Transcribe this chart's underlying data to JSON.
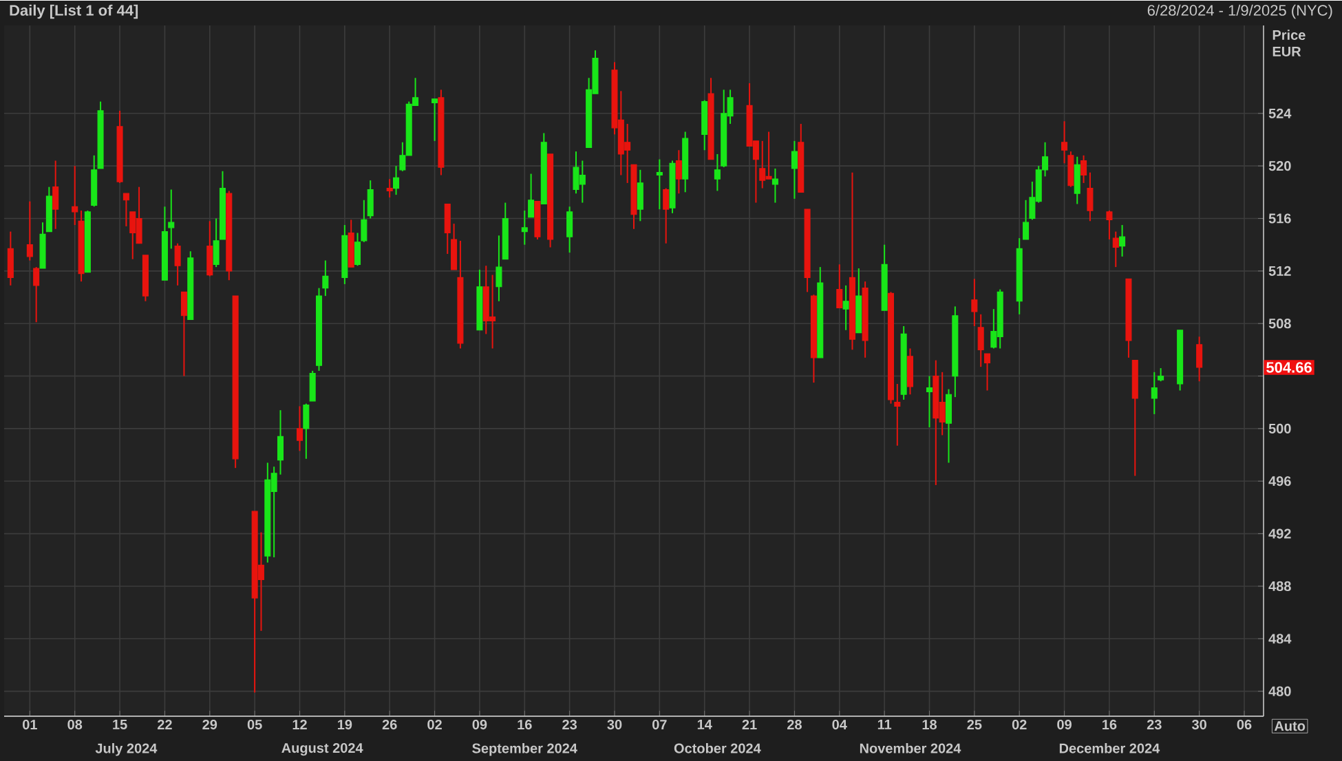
{
  "chart_data": {
    "type": "candlestick",
    "title": "Daily [List 1 of 44]",
    "subtitle": "6/28/2024 - 1/9/2025 (NYC)",
    "ylabel": "Price EUR",
    "x": [
      "2024-06-28",
      "2024-07-01",
      "2024-07-02",
      "2024-07-03",
      "2024-07-04",
      "2024-07-05",
      "2024-07-08",
      "2024-07-09",
      "2024-07-10",
      "2024-07-11",
      "2024-07-12",
      "2024-07-15",
      "2024-07-16",
      "2024-07-17",
      "2024-07-18",
      "2024-07-19",
      "2024-07-22",
      "2024-07-23",
      "2024-07-24",
      "2024-07-25",
      "2024-07-26",
      "2024-07-29",
      "2024-07-30",
      "2024-07-31",
      "2024-08-01",
      "2024-08-02",
      "2024-08-05",
      "2024-08-06",
      "2024-08-07",
      "2024-08-08",
      "2024-08-09",
      "2024-08-12",
      "2024-08-13",
      "2024-08-14",
      "2024-08-15",
      "2024-08-16",
      "2024-08-19",
      "2024-08-20",
      "2024-08-21",
      "2024-08-22",
      "2024-08-23",
      "2024-08-26",
      "2024-08-27",
      "2024-08-28",
      "2024-08-29",
      "2024-08-30",
      "2024-09-02",
      "2024-09-03",
      "2024-09-04",
      "2024-09-05",
      "2024-09-06",
      "2024-09-09",
      "2024-09-10",
      "2024-09-11",
      "2024-09-12",
      "2024-09-13",
      "2024-09-16",
      "2024-09-17",
      "2024-09-18",
      "2024-09-19",
      "2024-09-20",
      "2024-09-23",
      "2024-09-24",
      "2024-09-25",
      "2024-09-26",
      "2024-09-27",
      "2024-09-30",
      "2024-10-01",
      "2024-10-02",
      "2024-10-03",
      "2024-10-04",
      "2024-10-07",
      "2024-10-08",
      "2024-10-09",
      "2024-10-10",
      "2024-10-11",
      "2024-10-14",
      "2024-10-15",
      "2024-10-16",
      "2024-10-17",
      "2024-10-18",
      "2024-10-21",
      "2024-10-22",
      "2024-10-23",
      "2024-10-24",
      "2024-10-25",
      "2024-10-28",
      "2024-10-29",
      "2024-10-30",
      "2024-10-31",
      "2024-11-01",
      "2024-11-04",
      "2024-11-05",
      "2024-11-06",
      "2024-11-07",
      "2024-11-08",
      "2024-11-11",
      "2024-11-12",
      "2024-11-13",
      "2024-11-14",
      "2024-11-15",
      "2024-11-18",
      "2024-11-19",
      "2024-11-20",
      "2024-11-21",
      "2024-11-22",
      "2024-11-25",
      "2024-11-26",
      "2024-11-27",
      "2024-11-28",
      "2024-11-29",
      "2024-12-02",
      "2024-12-03",
      "2024-12-04",
      "2024-12-05",
      "2024-12-06",
      "2024-12-09",
      "2024-12-10",
      "2024-12-11",
      "2024-12-12",
      "2024-12-13",
      "2024-12-16",
      "2024-12-17",
      "2024-12-18",
      "2024-12-19",
      "2024-12-20",
      "2024-12-23",
      "2024-12-24",
      "2024-12-27",
      "2024-12-30"
    ],
    "ohlc": [
      [
        513.7,
        515.0,
        510.9,
        511.5
      ],
      [
        514.0,
        517.3,
        512.8,
        513.1
      ],
      [
        512.2,
        512.3,
        508.1,
        510.9
      ],
      [
        512.2,
        515.7,
        512.2,
        514.8
      ],
      [
        515.0,
        518.4,
        515.0,
        517.7
      ],
      [
        518.4,
        520.4,
        515.2,
        516.7
      ],
      [
        516.9,
        520.0,
        515.5,
        516.5
      ],
      [
        515.8,
        516.6,
        511.2,
        511.8
      ],
      [
        511.9,
        516.6,
        511.9,
        516.5
      ],
      [
        517.0,
        520.8,
        516.9,
        519.7
      ],
      [
        519.8,
        524.9,
        519.8,
        524.2
      ],
      [
        523.0,
        524.2,
        518.7,
        518.8
      ],
      [
        517.9,
        517.9,
        515.4,
        517.4
      ],
      [
        516.5,
        516.5,
        512.9,
        514.9
      ],
      [
        516.0,
        518.4,
        514.1,
        514.1
      ],
      [
        513.2,
        513.2,
        509.7,
        510.1
      ],
      [
        511.3,
        516.9,
        511.3,
        515.0
      ],
      [
        515.3,
        518.2,
        513.7,
        515.7
      ],
      [
        513.9,
        514.1,
        510.9,
        512.4
      ],
      [
        510.4,
        510.4,
        504.0,
        508.6
      ],
      [
        508.3,
        513.5,
        508.3,
        513.0
      ],
      [
        513.9,
        515.8,
        511.6,
        511.7
      ],
      [
        512.5,
        516.0,
        512.3,
        514.3
      ],
      [
        514.4,
        519.6,
        514.4,
        518.3
      ],
      [
        517.9,
        518.1,
        511.3,
        512.0
      ],
      [
        510.1,
        510.1,
        497.0,
        497.7
      ],
      [
        493.7,
        493.7,
        479.9,
        487.1
      ],
      [
        489.6,
        492.1,
        484.6,
        488.5
      ],
      [
        490.3,
        497.4,
        489.8,
        496.1
      ],
      [
        495.2,
        497.1,
        490.2,
        496.6
      ],
      [
        497.6,
        501.4,
        496.5,
        499.4
      ],
      [
        500.0,
        501.7,
        498.3,
        499.1
      ],
      [
        500.0,
        501.9,
        497.7,
        501.8
      ],
      [
        502.1,
        504.4,
        502.1,
        504.2
      ],
      [
        504.8,
        510.7,
        504.4,
        510.1
      ],
      [
        510.7,
        512.8,
        510.1,
        511.6
      ],
      [
        511.5,
        515.5,
        511.0,
        514.7
      ],
      [
        514.9,
        515.9,
        512.3,
        512.3
      ],
      [
        512.5,
        514.9,
        512.4,
        514.2
      ],
      [
        514.3,
        517.4,
        514.2,
        515.9
      ],
      [
        516.2,
        518.9,
        516.0,
        518.2
      ],
      [
        518.3,
        519.0,
        517.6,
        518.1
      ],
      [
        518.3,
        520.0,
        517.8,
        519.1
      ],
      [
        519.7,
        521.8,
        519.6,
        520.8
      ],
      [
        520.8,
        524.9,
        520.8,
        524.7
      ],
      [
        524.6,
        526.7,
        524.6,
        525.2
      ],
      [
        524.8,
        525.1,
        521.9,
        525.1
      ],
      [
        525.2,
        525.8,
        519.3,
        519.9
      ],
      [
        517.1,
        517.1,
        513.3,
        514.9
      ],
      [
        514.4,
        515.6,
        512.1,
        512.1
      ],
      [
        511.5,
        514.3,
        506.1,
        506.5
      ],
      [
        507.5,
        512.1,
        507.5,
        510.8
      ],
      [
        510.8,
        512.4,
        507.2,
        508.2
      ],
      [
        508.5,
        511.7,
        506.1,
        508.2
      ],
      [
        510.8,
        514.7,
        509.7,
        512.3
      ],
      [
        512.9,
        517.2,
        512.9,
        516.0
      ],
      [
        515.0,
        516.6,
        514.0,
        515.3
      ],
      [
        516.1,
        519.4,
        516.1,
        517.4
      ],
      [
        517.3,
        517.3,
        514.4,
        514.6
      ],
      [
        517.1,
        522.5,
        517.1,
        521.8
      ],
      [
        520.9,
        520.9,
        513.8,
        514.4
      ],
      [
        514.6,
        516.9,
        513.4,
        516.5
      ],
      [
        518.2,
        521.1,
        517.9,
        519.9
      ],
      [
        518.6,
        520.4,
        517.2,
        519.3
      ],
      [
        521.4,
        526.7,
        521.4,
        525.8
      ],
      [
        525.5,
        528.8,
        525.5,
        528.2
      ],
      [
        527.3,
        527.9,
        522.4,
        522.9
      ],
      [
        523.5,
        525.7,
        519.3,
        520.9
      ],
      [
        521.8,
        523.2,
        518.7,
        521.2
      ],
      [
        520.1,
        520.1,
        515.2,
        516.3
      ],
      [
        516.7,
        519.7,
        515.8,
        518.7
      ],
      [
        519.3,
        520.5,
        516.7,
        519.5
      ],
      [
        518.2,
        518.3,
        514.1,
        516.7
      ],
      [
        516.8,
        520.4,
        516.4,
        520.2
      ],
      [
        520.4,
        521.2,
        517.9,
        519.0
      ],
      [
        519.0,
        522.6,
        518.0,
        522.1
      ],
      [
        522.4,
        525.0,
        521.2,
        524.9
      ],
      [
        525.5,
        526.7,
        520.5,
        520.5
      ],
      [
        519.0,
        520.9,
        518.1,
        519.7
      ],
      [
        520.0,
        525.8,
        519.9,
        524.0
      ],
      [
        523.8,
        525.8,
        523.2,
        525.2
      ],
      [
        524.6,
        526.3,
        521.5,
        521.5
      ],
      [
        521.9,
        521.9,
        517.2,
        520.5
      ],
      [
        519.8,
        521.9,
        518.3,
        518.9
      ],
      [
        519.2,
        522.6,
        519.0,
        519.0
      ],
      [
        518.6,
        519.8,
        517.2,
        519.0
      ],
      [
        519.8,
        521.9,
        517.5,
        521.1
      ],
      [
        521.8,
        523.2,
        518.0,
        518.0
      ],
      [
        516.7,
        516.7,
        510.4,
        511.5
      ],
      [
        510.1,
        510.2,
        503.5,
        505.4
      ],
      [
        505.4,
        512.3,
        505.4,
        511.1
      ],
      [
        510.6,
        512.5,
        509.2,
        509.2
      ],
      [
        509.1,
        510.9,
        507.5,
        509.7
      ],
      [
        511.5,
        519.5,
        506.0,
        506.8
      ],
      [
        507.3,
        512.2,
        507.3,
        510.1
      ],
      [
        510.7,
        511.2,
        505.4,
        506.7
      ],
      [
        509.0,
        514.0,
        509.0,
        512.5
      ],
      [
        510.3,
        510.4,
        501.9,
        502.2
      ],
      [
        502.0,
        503.4,
        498.7,
        501.7
      ],
      [
        502.6,
        507.8,
        502.2,
        507.2
      ],
      [
        505.5,
        506.1,
        502.6,
        503.2
      ],
      [
        502.8,
        504.0,
        500.1,
        503.1
      ],
      [
        504.0,
        505.2,
        495.7,
        500.8
      ],
      [
        502.0,
        504.3,
        499.5,
        500.5
      ],
      [
        500.4,
        503.0,
        497.4,
        502.6
      ],
      [
        504.0,
        509.3,
        502.4,
        508.6
      ],
      [
        509.8,
        511.4,
        507.8,
        508.9
      ],
      [
        507.7,
        508.7,
        504.7,
        506.0
      ],
      [
        505.7,
        505.7,
        502.9,
        505.0
      ],
      [
        506.2,
        509.1,
        506.1,
        507.4
      ],
      [
        507.0,
        510.6,
        506.1,
        510.4
      ],
      [
        509.7,
        514.5,
        508.7,
        513.7
      ],
      [
        514.4,
        517.4,
        514.4,
        515.7
      ],
      [
        516.0,
        518.8,
        515.9,
        517.6
      ],
      [
        517.3,
        520.0,
        517.2,
        519.7
      ],
      [
        519.7,
        521.8,
        519.2,
        520.7
      ],
      [
        521.8,
        523.4,
        520.2,
        521.2
      ],
      [
        520.8,
        521.1,
        518.4,
        518.5
      ],
      [
        517.9,
        520.7,
        517.1,
        520.1
      ],
      [
        520.4,
        520.8,
        518.7,
        519.3
      ],
      [
        518.3,
        519.5,
        515.8,
        516.6
      ],
      [
        516.5,
        516.6,
        514.4,
        515.9
      ],
      [
        514.5,
        515.0,
        512.3,
        513.8
      ],
      [
        513.9,
        515.5,
        513.1,
        514.6
      ],
      [
        511.4,
        511.4,
        505.4,
        506.7
      ],
      [
        505.2,
        505.2,
        496.4,
        502.3
      ],
      [
        502.3,
        504.3,
        501.1,
        503.1
      ],
      [
        503.7,
        504.6,
        503.6,
        504.0
      ],
      [
        503.4,
        507.5,
        502.9,
        507.5
      ],
      [
        506.4,
        507.0,
        503.6,
        504.66
      ]
    ],
    "colors": [
      "#e8140e",
      "#e8140e",
      "#e8140e",
      "#19e619",
      "#19e619",
      "#e8140e",
      "#e8140e",
      "#e8140e",
      "#19e619",
      "#19e619",
      "#19e619",
      "#e8140e",
      "#e8140e",
      "#e8140e",
      "#e8140e",
      "#e8140e",
      "#19e619",
      "#19e619",
      "#e8140e",
      "#e8140e",
      "#19e619",
      "#e8140e",
      "#19e619",
      "#19e619",
      "#e8140e",
      "#e8140e",
      "#e8140e",
      "#e8140e",
      "#19e619",
      "#19e619",
      "#19e619",
      "#e8140e",
      "#19e619",
      "#19e619",
      "#19e619",
      "#19e619",
      "#19e619",
      "#e8140e",
      "#19e619",
      "#19e619",
      "#19e619",
      "#e8140e",
      "#19e619",
      "#19e619",
      "#19e619",
      "#19e619",
      "#19e619",
      "#e8140e",
      "#e8140e",
      "#e8140e",
      "#e8140e",
      "#19e619",
      "#e8140e",
      "#e8140e",
      "#19e619",
      "#19e619",
      "#19e619",
      "#19e619",
      "#e8140e",
      "#19e619",
      "#e8140e",
      "#19e619",
      "#19e619",
      "#19e619",
      "#19e619",
      "#19e619",
      "#e8140e",
      "#e8140e",
      "#e8140e",
      "#e8140e",
      "#19e619",
      "#19e619",
      "#e8140e",
      "#19e619",
      "#e8140e",
      "#19e619",
      "#19e619",
      "#e8140e",
      "#19e619",
      "#19e619",
      "#19e619",
      "#e8140e",
      "#e8140e",
      "#e8140e",
      "#e8140e",
      "#19e619",
      "#19e619",
      "#e8140e",
      "#e8140e",
      "#e8140e",
      "#19e619",
      "#e8140e",
      "#19e619",
      "#e8140e",
      "#19e619",
      "#e8140e",
      "#19e619",
      "#e8140e",
      "#e8140e",
      "#19e619",
      "#e8140e",
      "#19e619",
      "#e8140e",
      "#e8140e",
      "#19e619",
      "#19e619",
      "#e8140e",
      "#e8140e",
      "#e8140e",
      "#19e619",
      "#19e619",
      "#19e619",
      "#19e619",
      "#19e619",
      "#19e619",
      "#19e619",
      "#e8140e",
      "#e8140e",
      "#19e619",
      "#e8140e",
      "#e8140e",
      "#e8140e",
      "#e8140e",
      "#19e619",
      "#e8140e",
      "#e8140e",
      "#19e619",
      "#19e619",
      "#19e619",
      "#e8140e"
    ],
    "xlim": [
      "2024-06-27",
      "2025-01-09"
    ],
    "xticks": [
      {
        "value": "2024-07-01",
        "label": "01"
      },
      {
        "value": "2024-07-08",
        "label": "08"
      },
      {
        "value": "2024-07-15",
        "label": "15"
      },
      {
        "value": "2024-07-22",
        "label": "22"
      },
      {
        "value": "2024-07-29",
        "label": "29"
      },
      {
        "value": "2024-08-05",
        "label": "05"
      },
      {
        "value": "2024-08-12",
        "label": "12"
      },
      {
        "value": "2024-08-19",
        "label": "19"
      },
      {
        "value": "2024-08-26",
        "label": "26"
      },
      {
        "value": "2024-09-02",
        "label": "02"
      },
      {
        "value": "2024-09-09",
        "label": "09"
      },
      {
        "value": "2024-09-16",
        "label": "16"
      },
      {
        "value": "2024-09-23",
        "label": "23"
      },
      {
        "value": "2024-09-30",
        "label": "30"
      },
      {
        "value": "2024-10-07",
        "label": "07"
      },
      {
        "value": "2024-10-14",
        "label": "14"
      },
      {
        "value": "2024-10-21",
        "label": "21"
      },
      {
        "value": "2024-10-28",
        "label": "28"
      },
      {
        "value": "2024-11-04",
        "label": "04"
      },
      {
        "value": "2024-11-11",
        "label": "11"
      },
      {
        "value": "2024-11-18",
        "label": "18"
      },
      {
        "value": "2024-11-25",
        "label": "25"
      },
      {
        "value": "2024-12-02",
        "label": "02"
      },
      {
        "value": "2024-12-09",
        "label": "09"
      },
      {
        "value": "2024-12-16",
        "label": "16"
      },
      {
        "value": "2024-12-23",
        "label": "23"
      },
      {
        "value": "2024-12-30",
        "label": "30"
      },
      {
        "value": "2025-01-06",
        "label": "06"
      }
    ],
    "ylim": [
      478.1,
      530.7
    ],
    "yticks": [
      480,
      484,
      488,
      492,
      496,
      500,
      {
        "value": 504,
        "label": null
      },
      508,
      512,
      516,
      520,
      524
    ],
    "grid": true,
    "annotations": [
      "July 2024",
      "August 2024",
      "September 2024",
      "October 2024",
      "November 2024",
      "December 2024",
      "504.66",
      "Auto"
    ]
  }
}
